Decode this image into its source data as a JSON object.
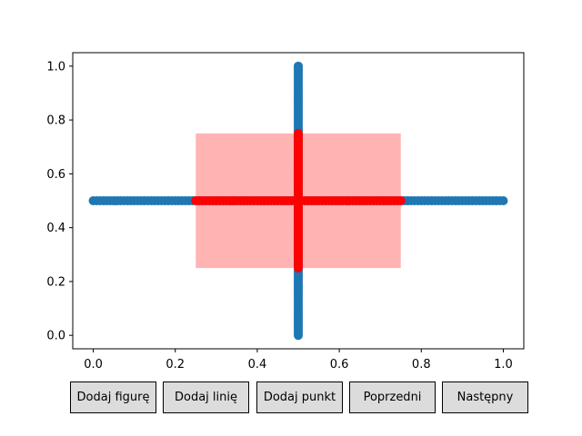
{
  "chart_data": {
    "type": "scatter",
    "xlim": [
      -0.05,
      1.05
    ],
    "ylim": [
      -0.05,
      1.05
    ],
    "xticks": [
      "0.0",
      "0.2",
      "0.4",
      "0.6",
      "0.8",
      "1.0"
    ],
    "yticks": [
      "0.0",
      "0.2",
      "0.4",
      "0.6",
      "0.8",
      "1.0"
    ],
    "grid": false,
    "rectangle": {
      "x0": 0.25,
      "x1": 0.75,
      "y0": 0.25,
      "y1": 0.75,
      "color": "#ff9999"
    },
    "series": [
      {
        "color": "#1f77b4",
        "segments": [
          {
            "axis": "horizontal",
            "fixed": 0.5,
            "from": 0.0,
            "to": 1.0
          },
          {
            "axis": "vertical",
            "fixed": 0.5,
            "from": 0.0,
            "to": 1.0
          }
        ]
      },
      {
        "color": "#ff0000",
        "segments": [
          {
            "axis": "horizontal",
            "fixed": 0.5,
            "from": 0.25,
            "to": 0.75
          },
          {
            "axis": "vertical",
            "fixed": 0.5,
            "from": 0.25,
            "to": 0.75
          }
        ]
      }
    ]
  },
  "buttons": {
    "add_figure": "Dodaj figurę",
    "add_line": "Dodaj linię",
    "add_point": "Dodaj punkt",
    "previous": "Poprzedni",
    "next": "Następny"
  }
}
